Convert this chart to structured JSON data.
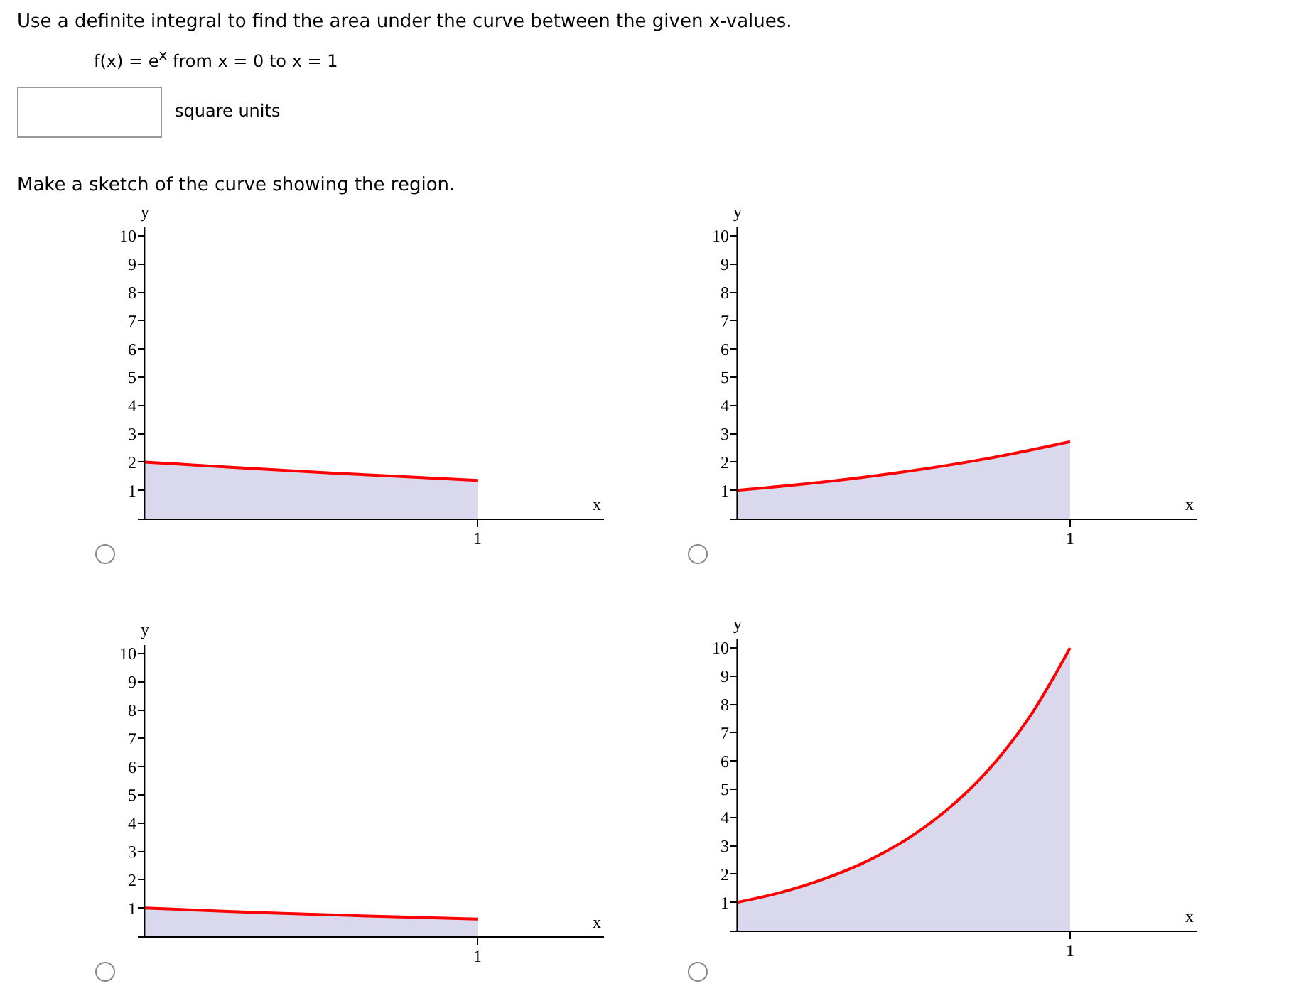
{
  "chart_data": [
    {
      "type": "area",
      "title": "Use a definite integral to find the area under the curve between the given x-values.",
      "subtitle": "f(x) = e$^{x}$  from x = 0 to x = 1",
      "annotations": [
        "square units",
        "Make a sketch of the curve showing the region.",
        "1"
      ],
      "xlabel": "x",
      "ylabel": "y",
      "categories": [
        null,
        null,
        null,
        null,
        null
      ],
      "series": [
        {
          "color": "#ff0000",
          "values": [
            2.0,
            1.82,
            1.65,
            1.5,
            1.35
          ]
        }
      ],
      "ylim": [
        0,
        10.3
      ],
      "yticks": [
        1,
        2,
        3,
        4,
        5,
        6,
        7,
        8,
        9,
        10
      ],
      "grid": false
    },
    {
      "type": "area",
      "annotations": [
        "1"
      ],
      "xlabel": "x",
      "ylabel": "y",
      "categories": [
        null,
        null,
        null,
        null,
        null
      ],
      "series": [
        {
          "color": "#ff0000",
          "values": [
            1,
            1.28,
            1.65,
            2.12,
            2.72
          ]
        }
      ],
      "ylim": [
        0,
        10.3
      ],
      "yticks": [
        1,
        2,
        3,
        4,
        5,
        6,
        7,
        8,
        9,
        10
      ],
      "grid": false
    },
    {
      "type": "area",
      "annotations": [
        "1"
      ],
      "xlabel": "x",
      "ylabel": "y",
      "categories": [
        null,
        null,
        null,
        null,
        null
      ],
      "series": [
        {
          "color": "#ff0000",
          "values": [
            1,
            0.88,
            0.78,
            0.69,
            0.61
          ]
        }
      ],
      "ylim": [
        0,
        10.3
      ],
      "yticks": [
        1,
        2,
        3,
        4,
        5,
        6,
        7,
        8,
        9,
        10
      ],
      "grid": false
    },
    {
      "type": "area",
      "annotations": [
        "1"
      ],
      "xlabel": "x",
      "ylabel": "y",
      "categories": [
        null,
        null,
        null,
        null,
        null,
        null,
        null,
        null,
        null
      ],
      "series": [
        {
          "color": "#ff0000",
          "values": [
            1,
            1.33,
            1.78,
            2.37,
            3.16,
            4.22,
            5.62,
            7.5,
            10
          ]
        }
      ],
      "ylim": [
        0,
        10.3
      ],
      "yticks": [
        1,
        2,
        3,
        4,
        5,
        6,
        7,
        8,
        9,
        10
      ],
      "grid": false
    }
  ]
}
